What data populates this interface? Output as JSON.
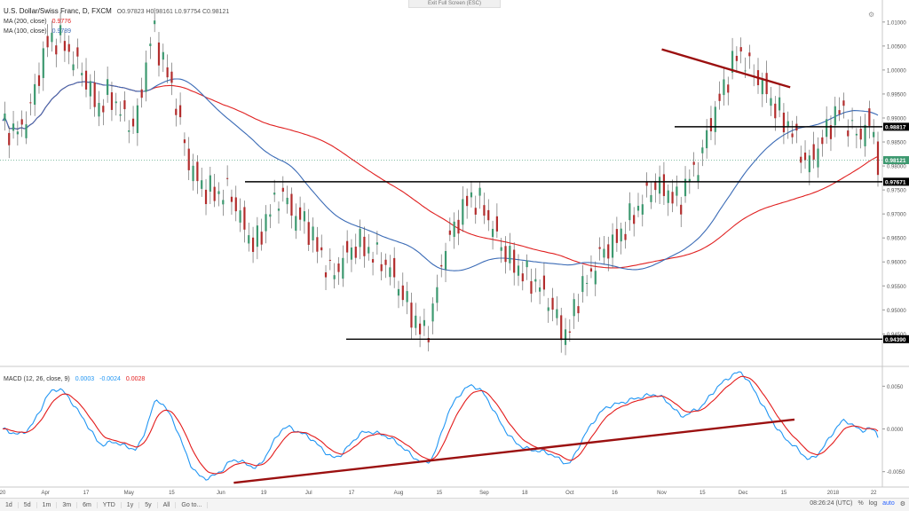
{
  "header": {
    "symbol": "U.S. Dollar/Swiss Franc, D, FXCM",
    "ohlc": [
      {
        "k": "O",
        "v": "0.97823"
      },
      {
        "k": "H",
        "v": "0.98161"
      },
      {
        "k": "L",
        "v": "0.97754"
      },
      {
        "k": "C",
        "v": "0.98121"
      }
    ],
    "ma200_label": "MA (200, close)",
    "ma200_value": "0.9776",
    "ma100_label": "MA (100, close)",
    "ma100_value": "0.9789",
    "macd_label": "MACD (12, 26, close, 9)",
    "macd_values": [
      "0.0003",
      "-0.0024",
      "0.0028"
    ]
  },
  "exit_fullscreen": "Exit Full Screen (ESC)",
  "colors": {
    "up": "#3d9970",
    "down": "#b22d2d",
    "ma200": "#e02020",
    "ma100": "#3b6bb6",
    "macd": "#2196f3",
    "signal": "#e31c1c",
    "trendline": "#9b1010"
  },
  "chart_data": {
    "type": "candlestick",
    "price_axis": {
      "range": [
        0.941,
        1.012
      ],
      "ticks": [
        "1.01000",
        "1.00500",
        "1.00000",
        "0.99500",
        "0.99000",
        "0.98500",
        "0.98000",
        "0.97500",
        "0.97000",
        "0.96500",
        "0.96000",
        "0.95500",
        "0.95000",
        "0.94500"
      ],
      "tick_values": [
        1.01,
        1.005,
        1.0,
        0.995,
        0.99,
        0.985,
        0.98,
        0.975,
        0.97,
        0.965,
        0.96,
        0.955,
        0.95,
        0.945
      ]
    },
    "price_labels": [
      {
        "text": "0.98817",
        "value": 0.98817
      },
      {
        "text": "0.98121",
        "value": 0.98121,
        "kind": "last"
      },
      {
        "text": "0.97671",
        "value": 0.97671
      },
      {
        "text": "0.94390",
        "value": 0.9439
      }
    ],
    "x_ticks": [
      "20",
      "Apr",
      "17",
      "May",
      "15",
      "Jun",
      "19",
      "Jul",
      "17",
      "Aug",
      "15",
      "Sep",
      "18",
      "Oct",
      "16",
      "Nov",
      "15",
      "Dec",
      "15",
      "2018",
      "22"
    ],
    "x_tick_index": [
      0,
      20,
      39,
      59,
      79,
      102,
      122,
      143,
      163,
      185,
      204,
      225,
      244,
      265,
      286,
      308,
      327,
      346,
      365,
      388,
      407
    ],
    "bars": 410,
    "horizontal_lines": [
      0.98817,
      0.97671,
      0.9439
    ],
    "price_trendline": {
      "from": [
        308,
        1.0043
      ],
      "to": [
        368,
        0.9964
      ]
    },
    "macd_axis": {
      "ticks": [
        "0.0050",
        "0.0000",
        "-0.0050"
      ],
      "tick_values": [
        0.005,
        0.0,
        -0.005
      ],
      "range": [
        -0.0068,
        0.0068
      ]
    },
    "macd_trendline": {
      "from": [
        108,
        -0.0063
      ],
      "to": [
        370,
        0.0011
      ]
    },
    "series": [
      {
        "name": "MA (200, close)",
        "last": 0.9776
      },
      {
        "name": "MA (100, close)",
        "last": 0.9789
      },
      {
        "name": "MACD (12, 26, close, 9)",
        "values": [
          0.0003,
          -0.0024,
          0.0028
        ]
      }
    ]
  },
  "bottom": {
    "timeframes": [
      "1d",
      "5d",
      "1m",
      "3m",
      "6m",
      "YTD",
      "1y",
      "5y",
      "All",
      "Go to..."
    ],
    "clock": "08:26:24 (UTC)",
    "options": [
      "%",
      "log",
      "auto"
    ]
  }
}
